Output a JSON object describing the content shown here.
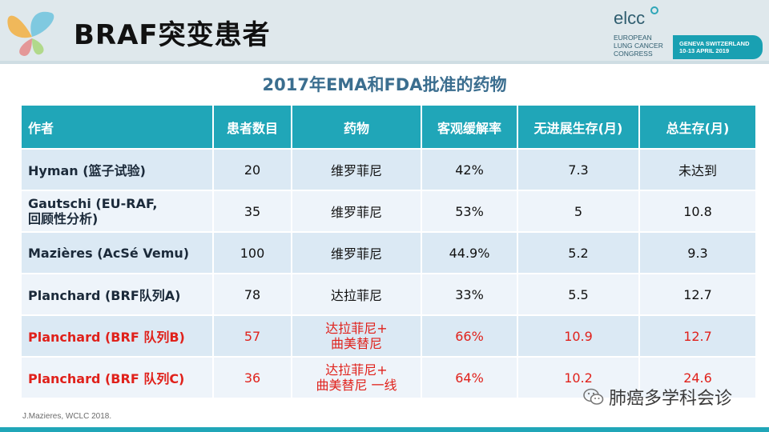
{
  "slide": {
    "title": "BRAF突变患者",
    "subtitle": "2017年EMA和FDA批准的药物",
    "citation": "J.Mazieres, WCLC 2018."
  },
  "conference": {
    "logo_text": "elcc",
    "line1": "EUROPEAN",
    "line2": "LUNG CANCER",
    "line3": "CONGRESS",
    "box_line1": "GENEVA SWITZERLAND",
    "box_line2": "10-13 APRIL 2019"
  },
  "table": {
    "headers": [
      "作者",
      "患者数目",
      "药物",
      "客观缓解率",
      "无进展生存(月)",
      "总生存(月)"
    ],
    "rows": [
      {
        "author": "Hyman (篮子试验)",
        "n": "20",
        "drug": "维罗菲尼",
        "orr": "42%",
        "pfs": "7.3",
        "os": "未达到"
      },
      {
        "author_line1": "Gautschi (EU-RAF,",
        "author_line2": "回顾性分析)",
        "n": "35",
        "drug": "维罗菲尼",
        "orr": "53%",
        "pfs": "5",
        "os": "10.8"
      },
      {
        "author": "Mazières  (AcSé Vemu)",
        "n": "100",
        "drug": "维罗菲尼",
        "orr": "44.9%",
        "pfs": "5.2",
        "os": "9.3"
      },
      {
        "author": "Planchard (BRF队列A)",
        "n": "78",
        "drug": "达拉菲尼",
        "orr": "33%",
        "pfs": "5.5",
        "os": "12.7"
      },
      {
        "author": "Planchard   (BRF 队列B)",
        "n": "57",
        "drug_line1": "达拉菲尼+",
        "drug_line2": "曲美替尼",
        "orr": "66%",
        "pfs": "10.9",
        "os": "12.7"
      },
      {
        "author": "Planchard   (BRF 队列C)",
        "n": "36",
        "drug_line1": "达拉菲尼+",
        "drug_line2": "曲美替尼 一线",
        "orr": "64%",
        "pfs": "10.2",
        "os": "24.6"
      }
    ]
  },
  "watermark": {
    "text": "肺癌多学科会诊",
    "icon": "wechat-icon"
  },
  "colors": {
    "header": "#20a6b8",
    "highlight": "#e0211b",
    "subtitle": "#3b6e8f"
  }
}
